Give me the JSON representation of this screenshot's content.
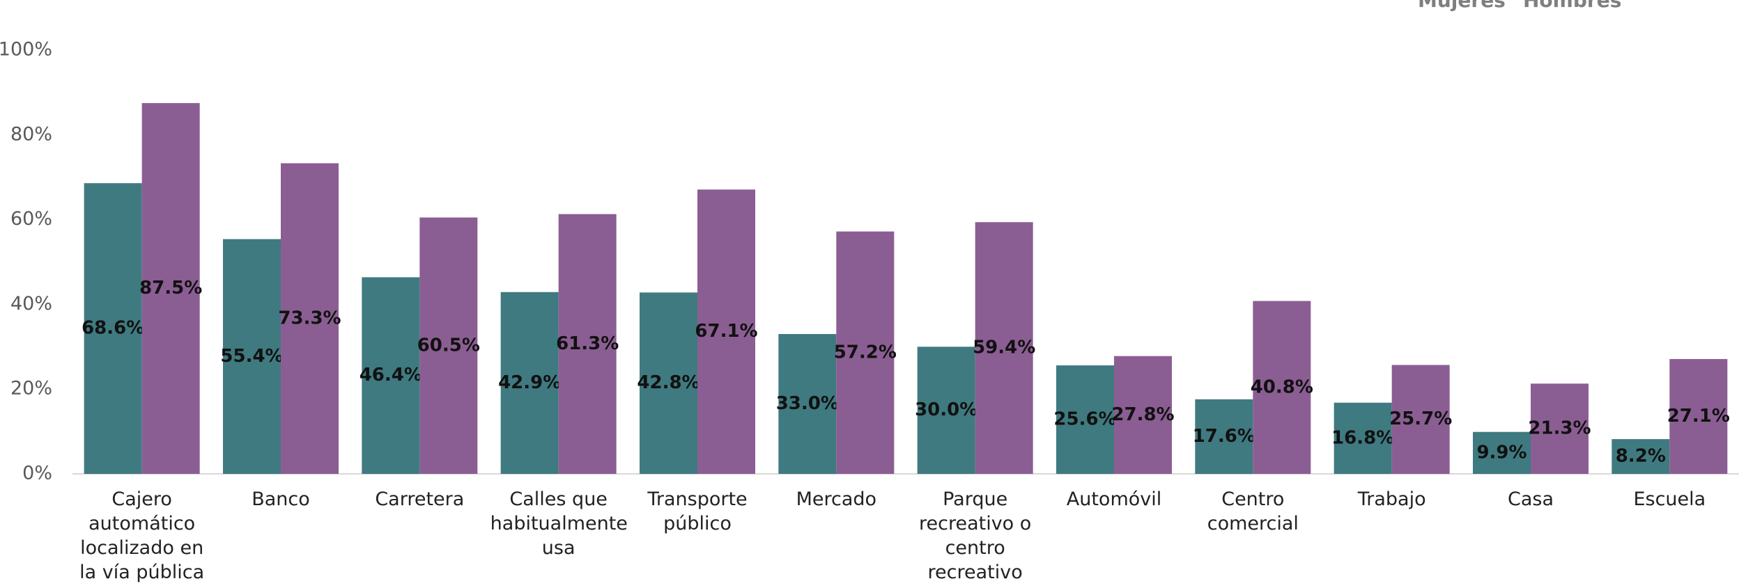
{
  "chart_data": {
    "type": "bar",
    "categories": [
      "Cajero automático localizado en la vía pública",
      "Banco",
      "Carretera",
      "Calles que habitualmente usa",
      "Transporte público",
      "Mercado",
      "Parque recreativo o centro recreativo",
      "Automóvil",
      "Centro comercial",
      "Trabajo",
      "Casa",
      "Escuela"
    ],
    "series": [
      {
        "name": "Mujeres",
        "color": "#3f7a80",
        "values": [
          68.6,
          55.4,
          46.4,
          42.9,
          42.8,
          33.0,
          30.0,
          25.6,
          17.6,
          16.8,
          9.9,
          8.2
        ],
        "value_labels": [
          "68.6%",
          "55.4%",
          "46.4%",
          "42.9%",
          "42.8%",
          "33.0%",
          "30.0%",
          "25.6%",
          "17.6%",
          "16.8%",
          "9.9%",
          "8.2%"
        ]
      },
      {
        "name": "Hombres",
        "color": "#8b5e93",
        "values": [
          87.5,
          73.3,
          60.5,
          61.3,
          67.1,
          57.2,
          59.4,
          27.8,
          40.8,
          25.7,
          21.3,
          27.1
        ],
        "value_labels": [
          "87.5%",
          "73.3%",
          "60.5%",
          "61.3%",
          "67.1%",
          "57.2%",
          "59.4%",
          "27.8%",
          "40.8%",
          "25.7%",
          "21.3%",
          "27.1%"
        ]
      }
    ],
    "ylim": [
      0,
      100
    ],
    "yticks": [
      {
        "value": 0,
        "label": "0%"
      },
      {
        "value": 20,
        "label": "20%"
      },
      {
        "value": 40,
        "label": "40%"
      },
      {
        "value": 60,
        "label": "60%"
      },
      {
        "value": 80,
        "label": "80%"
      },
      {
        "value": 100,
        "label": "100%"
      }
    ],
    "grid": false,
    "legend": "top-right"
  }
}
